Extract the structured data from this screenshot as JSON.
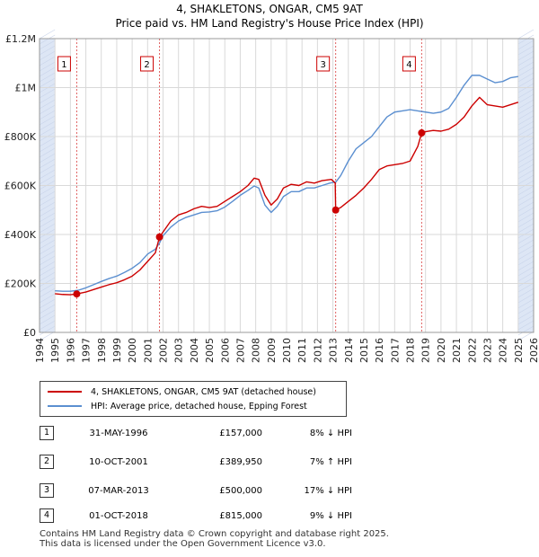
{
  "header": {
    "title": "4, SHAKLETONS, ONGAR, CM5 9AT",
    "subtitle": "Price paid vs. HM Land Registry's House Price Index (HPI)"
  },
  "colors": {
    "property": "#cc0000",
    "hpi": "#5b8fd0",
    "shade": "#dde6f5",
    "marker": "#cc0000"
  },
  "chart_data": {
    "type": "line",
    "ylim": [
      0,
      1200000
    ],
    "xlim": [
      1994,
      2026
    ],
    "yticks": [
      {
        "value": 0,
        "label": "£0"
      },
      {
        "value": 200000,
        "label": "£200K"
      },
      {
        "value": 400000,
        "label": "£400K"
      },
      {
        "value": 600000,
        "label": "£600K"
      },
      {
        "value": 800000,
        "label": "£800K"
      },
      {
        "value": 1000000,
        "label": "£1M"
      },
      {
        "value": 1200000,
        "label": "£1.2M"
      }
    ],
    "xticks": [
      "1994",
      "1995",
      "1996",
      "1997",
      "1998",
      "1999",
      "2000",
      "2001",
      "2002",
      "2003",
      "2004",
      "2005",
      "2006",
      "2007",
      "2008",
      "2009",
      "2010",
      "2011",
      "2012",
      "2013",
      "2014",
      "2015",
      "2016",
      "2017",
      "2018",
      "2019",
      "2020",
      "2021",
      "2022",
      "2023",
      "2024",
      "2025",
      "2026"
    ],
    "shaded_ranges": [
      [
        1994,
        1995
      ],
      [
        2025,
        2026
      ]
    ],
    "series": [
      {
        "name": "4, SHAKLETONS, ONGAR, CM5 9AT (detached house)",
        "x": [
          1995.0,
          1995.5,
          1996.0,
          1996.41,
          1997.0,
          1997.5,
          1998.0,
          1998.5,
          1999.0,
          1999.5,
          2000.0,
          2000.5,
          2001.0,
          2001.5,
          2001.77,
          2002.0,
          2002.5,
          2003.0,
          2003.5,
          2004.0,
          2004.5,
          2005.0,
          2005.5,
          2006.0,
          2006.5,
          2007.0,
          2007.5,
          2007.9,
          2008.2,
          2008.6,
          2009.0,
          2009.4,
          2009.8,
          2010.3,
          2010.8,
          2011.3,
          2011.8,
          2012.3,
          2012.9,
          2013.15,
          2013.18,
          2013.5,
          2014.0,
          2014.5,
          2015.0,
          2015.5,
          2016.0,
          2016.5,
          2017.0,
          2017.5,
          2018.0,
          2018.5,
          2018.75,
          2019.0,
          2019.5,
          2020.0,
          2020.5,
          2021.0,
          2021.5,
          2022.0,
          2022.5,
          2023.0,
          2023.5,
          2024.0,
          2024.5,
          2025.0
        ],
        "values": [
          158000,
          155000,
          154000,
          157000,
          165000,
          175000,
          185000,
          195000,
          203000,
          215000,
          230000,
          255000,
          290000,
          325000,
          389950,
          410000,
          455000,
          480000,
          490000,
          505000,
          515000,
          510000,
          515000,
          535000,
          555000,
          575000,
          600000,
          630000,
          625000,
          560000,
          520000,
          545000,
          590000,
          605000,
          600000,
          615000,
          610000,
          620000,
          625000,
          610000,
          500000,
          510000,
          535000,
          560000,
          590000,
          625000,
          665000,
          680000,
          685000,
          690000,
          700000,
          760000,
          815000,
          820000,
          825000,
          822000,
          830000,
          850000,
          880000,
          925000,
          960000,
          930000,
          925000,
          920000,
          930000,
          940000
        ]
      },
      {
        "name": "HPI: Average price, detached house, Epping Forest",
        "x": [
          1995.0,
          1995.5,
          1996.0,
          1996.5,
          1997.0,
          1997.5,
          1998.0,
          1998.5,
          1999.0,
          1999.5,
          2000.0,
          2000.5,
          2001.0,
          2001.5,
          2001.77,
          2002.0,
          2002.5,
          2003.0,
          2003.5,
          2004.0,
          2004.5,
          2005.0,
          2005.5,
          2006.0,
          2006.5,
          2007.0,
          2007.5,
          2007.9,
          2008.2,
          2008.6,
          2009.0,
          2009.4,
          2009.8,
          2010.3,
          2010.8,
          2011.3,
          2011.8,
          2012.3,
          2012.8,
          2013.2,
          2013.5,
          2014.0,
          2014.5,
          2015.0,
          2015.5,
          2016.0,
          2016.5,
          2017.0,
          2017.5,
          2018.0,
          2018.5,
          2019.0,
          2019.5,
          2020.0,
          2020.5,
          2021.0,
          2021.5,
          2022.0,
          2022.5,
          2023.0,
          2023.5,
          2024.0,
          2024.5,
          2025.0
        ],
        "values": [
          170000,
          168000,
          168000,
          172000,
          182000,
          195000,
          208000,
          220000,
          230000,
          245000,
          262000,
          285000,
          320000,
          340000,
          365000,
          395000,
          430000,
          455000,
          470000,
          480000,
          490000,
          492000,
          497000,
          512000,
          535000,
          560000,
          580000,
          598000,
          590000,
          520000,
          490000,
          515000,
          555000,
          575000,
          575000,
          590000,
          590000,
          600000,
          610000,
          615000,
          640000,
          700000,
          750000,
          775000,
          800000,
          840000,
          880000,
          900000,
          905000,
          910000,
          905000,
          900000,
          895000,
          900000,
          915000,
          960000,
          1010000,
          1050000,
          1050000,
          1035000,
          1020000,
          1025000,
          1040000,
          1045000
        ]
      }
    ],
    "sales": [
      {
        "id": "1",
        "x": 1996.41,
        "value": 157000
      },
      {
        "id": "2",
        "x": 2001.77,
        "value": 389950
      },
      {
        "id": "3",
        "x": 2013.18,
        "value": 500000
      },
      {
        "id": "4",
        "x": 2018.75,
        "value": 815000
      }
    ]
  },
  "legend": {
    "items": [
      {
        "label": "4, SHAKLETONS, ONGAR, CM5 9AT (detached house)"
      },
      {
        "label": "HPI: Average price, detached house, Epping Forest"
      }
    ]
  },
  "transactions": [
    {
      "num": "1",
      "date": "31-MAY-1996",
      "price": "£157,000",
      "pct": "8% ↓ HPI"
    },
    {
      "num": "2",
      "date": "10-OCT-2001",
      "price": "£389,950",
      "pct": "7% ↑ HPI"
    },
    {
      "num": "3",
      "date": "07-MAR-2013",
      "price": "£500,000",
      "pct": "17% ↓ HPI"
    },
    {
      "num": "4",
      "date": "01-OCT-2018",
      "price": "£815,000",
      "pct": "9% ↓ HPI"
    }
  ],
  "footer": {
    "line1": "Contains HM Land Registry data © Crown copyright and database right 2025.",
    "line2": "This data is licensed under the Open Government Licence v3.0."
  }
}
